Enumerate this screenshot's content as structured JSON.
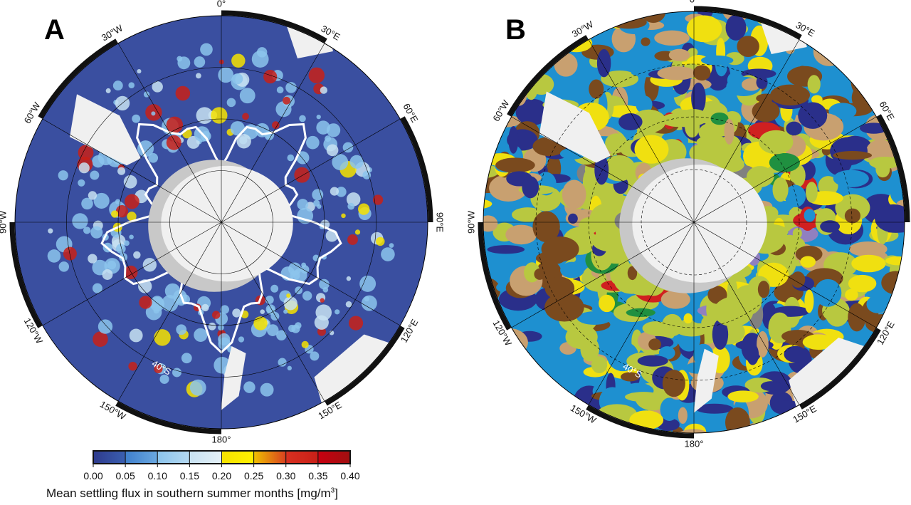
{
  "panels": [
    {
      "letter": "A",
      "ocean_color": "#3a4fa0",
      "land_color": "#f0f0f0",
      "shelf_color": "#c8c8c8"
    },
    {
      "letter": "B",
      "ocean_color": "#1e90d0",
      "land_color": "#f0f0f0",
      "shelf_color": "#c8c8c8"
    }
  ],
  "longitude_labels": [
    {
      "text": "0°",
      "lon": 0
    },
    {
      "text": "30°E",
      "lon": 30
    },
    {
      "text": "60°E",
      "lon": 60
    },
    {
      "text": "90°E",
      "lon": 90
    },
    {
      "text": "120°E",
      "lon": 120
    },
    {
      "text": "150°E",
      "lon": 150
    },
    {
      "text": "180°",
      "lon": 180
    },
    {
      "text": "150°W",
      "lon": 210
    },
    {
      "text": "120°W",
      "lon": 240
    },
    {
      "text": "90°W",
      "lon": 270
    },
    {
      "text": "60°W",
      "lon": 300
    },
    {
      "text": "30°W",
      "lon": 330
    }
  ],
  "latitude_label": "40°S",
  "colorbar": {
    "title": "Mean settling flux in southern summer months [mg/m",
    "title_sup": "3",
    "title_end": "]",
    "ticks": [
      "0.00",
      "0.05",
      "0.10",
      "0.15",
      "0.20",
      "0.25",
      "0.30",
      "0.35",
      "0.40"
    ],
    "colors": [
      [
        "#2e3a8c",
        "#3a5fb0"
      ],
      [
        "#3f7fcc",
        "#6aa8e0"
      ],
      [
        "#8cc4ec",
        "#b4d8f0"
      ],
      [
        "#c8e2f2",
        "#e4f0f6"
      ],
      [
        "#f6e200",
        "#fff000"
      ],
      [
        "#f0c000",
        "#d84020"
      ],
      [
        "#d83020",
        "#c82018"
      ],
      [
        "#c80010",
        "#a01010"
      ]
    ]
  },
  "panel_b_classes": [
    "#7a4a1e",
    "#1e90d0",
    "#2a2f8a",
    "#c8a070",
    "#b8c840",
    "#f0e010",
    "#209040",
    "#9080c0",
    "#d02020",
    "#808080"
  ]
}
